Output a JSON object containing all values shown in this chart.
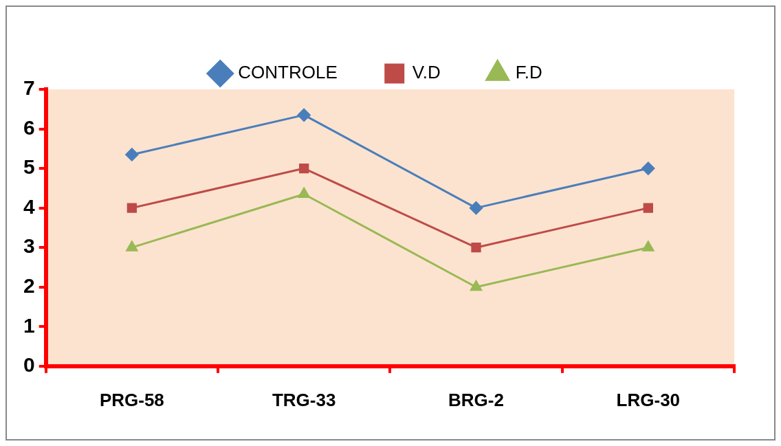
{
  "chart_data": {
    "type": "line",
    "categories": [
      "PRG-58",
      "TRG-33",
      "BRG-2",
      "LRG-30"
    ],
    "series": [
      {
        "name": "CONTROLE",
        "color": "#4a7ebb",
        "marker": "diamond",
        "values": [
          5.35,
          6.35,
          4,
          5
        ]
      },
      {
        "name": "V.D",
        "color": "#be4b48",
        "marker": "square",
        "values": [
          4,
          5,
          3,
          4
        ]
      },
      {
        "name": "F.D",
        "color": "#98b954",
        "marker": "triangle",
        "values": [
          3,
          4.35,
          2,
          3
        ]
      }
    ],
    "ylim": [
      0,
      7
    ],
    "yticks": [
      0,
      1,
      2,
      3,
      4,
      5,
      6,
      7
    ],
    "grid": false,
    "legend": "top"
  }
}
